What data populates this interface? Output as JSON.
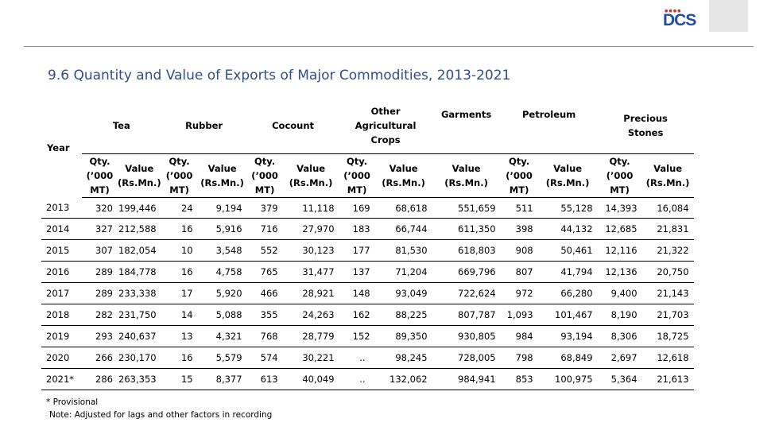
{
  "logo": {
    "text": "DCS"
  },
  "title": "9.6 Quantity and Value of Exports of Major Commodities, 2013-2021",
  "table": {
    "year_header": "Year",
    "groups": [
      "Tea",
      "Rubber",
      "Cocount",
      "Other Agricultural Crops",
      "Garments",
      "Petroleum",
      "Precious Stones"
    ],
    "qty_header": "Qty. (’000 MT)",
    "value_header": "Value (Rs.Mn.)",
    "rows": [
      [
        "2013",
        "320",
        "199,446",
        "24",
        "9,194",
        "379",
        "11,118",
        "169",
        "68,618",
        "551,659",
        "511",
        "55,128",
        "14,393",
        "16,084"
      ],
      [
        "2014",
        "327",
        "212,588",
        "16",
        "5,916",
        "716",
        "27,970",
        "183",
        "66,744",
        "611,350",
        "398",
        "44,132",
        "12,685",
        "21,831"
      ],
      [
        "2015",
        "307",
        "182,054",
        "10",
        "3,548",
        "552",
        "30,123",
        "177",
        "81,530",
        "618,803",
        "908",
        "50,461",
        "12,116",
        "21,322"
      ],
      [
        "2016",
        "289",
        "184,778",
        "16",
        "4,758",
        "765",
        "31,477",
        "137",
        "71,204",
        "669,796",
        "807",
        "41,794",
        "12,136",
        "20,750"
      ],
      [
        "2017",
        "289",
        "233,338",
        "17",
        "5,920",
        "466",
        "28,921",
        "148",
        "93,049",
        "722,624",
        "972",
        "66,280",
        "9,400",
        "21,143"
      ],
      [
        "2018",
        "282",
        "231,750",
        "14",
        "5,088",
        "355",
        "24,263",
        "162",
        "88,225",
        "807,787",
        "1,093",
        "101,467",
        "8,190",
        "21,703"
      ],
      [
        "2019",
        "293",
        "240,637",
        "13",
        "4,321",
        "768",
        "28,779",
        "152",
        "89,350",
        "930,805",
        "984",
        "93,194",
        "8,306",
        "18,725"
      ],
      [
        "2020",
        "266",
        "230,170",
        "16",
        "5,579",
        "574",
        "30,221",
        "..",
        "98,245",
        "728,005",
        "798",
        "68,849",
        "2,697",
        "12,618"
      ],
      [
        "2021*",
        "286",
        "263,353",
        "15",
        "8,377",
        "613",
        "40,049",
        "..",
        "132,062",
        "984,941",
        "853",
        "100,975",
        "5,364",
        "21,613"
      ]
    ]
  },
  "footnotes": {
    "provisional": "* Provisional",
    "note": "Note:  Adjusted for lags and other factors in recording"
  }
}
